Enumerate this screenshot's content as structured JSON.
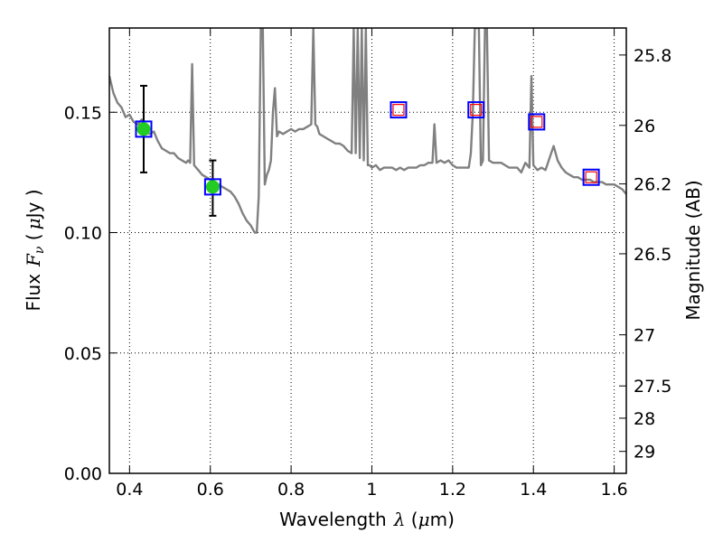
{
  "chart_data": {
    "type": "line",
    "xlabel": "Wavelength",
    "xlabel_math": "λ",
    "xlabel_unit_open": " (",
    "xlabel_unit_mu": "μ",
    "xlabel_unit_close": "m)",
    "ylabel_left": "Flux",
    "ylabel_left_math_F": "F",
    "ylabel_left_math_nu": "ν",
    "ylabel_left_unit_open": " (",
    "ylabel_left_unit_mu": "μ",
    "ylabel_left_unit_close": "Jy )",
    "ylabel_right": "Magnitude (AB)",
    "xlim": [
      0.35,
      1.63
    ],
    "ylim": [
      0.0,
      0.185
    ],
    "grid": true,
    "x_ticks": [
      {
        "value": 0.4,
        "label": "0.4"
      },
      {
        "value": 0.6,
        "label": "0.6"
      },
      {
        "value": 0.8,
        "label": "0.8"
      },
      {
        "value": 1.0,
        "label": "1"
      },
      {
        "value": 1.2,
        "label": "1.2"
      },
      {
        "value": 1.4,
        "label": "1.4"
      },
      {
        "value": 1.6,
        "label": "1.6"
      }
    ],
    "y_ticks": [
      {
        "value": 0.0,
        "label": "0.00"
      },
      {
        "value": 0.05,
        "label": "0.05"
      },
      {
        "value": 0.1,
        "label": "0.10"
      },
      {
        "value": 0.15,
        "label": "0.15"
      }
    ],
    "right_ticks": [
      {
        "value": 25.8,
        "label": "25.8"
      },
      {
        "value": 26.0,
        "label": "26"
      },
      {
        "value": 26.2,
        "label": "26.2"
      },
      {
        "value": 26.5,
        "label": "26.5"
      },
      {
        "value": 27.0,
        "label": "27"
      },
      {
        "value": 27.5,
        "label": "27.5"
      },
      {
        "value": 28.0,
        "label": "28"
      },
      {
        "value": 29.0,
        "label": "29"
      }
    ],
    "series": [
      {
        "type": "line",
        "color": "#808080",
        "x": [
          0.35,
          0.36,
          0.37,
          0.38,
          0.39,
          0.4,
          0.41,
          0.42,
          0.43,
          0.44,
          0.45,
          0.46,
          0.47,
          0.48,
          0.49,
          0.5,
          0.51,
          0.52,
          0.53,
          0.54,
          0.545,
          0.55,
          0.555,
          0.56,
          0.565,
          0.57,
          0.58,
          0.59,
          0.6,
          0.61,
          0.62,
          0.63,
          0.64,
          0.65,
          0.66,
          0.67,
          0.68,
          0.69,
          0.7,
          0.71,
          0.715,
          0.72,
          0.725,
          0.73,
          0.735,
          0.74,
          0.745,
          0.75,
          0.755,
          0.76,
          0.765,
          0.77,
          0.78,
          0.79,
          0.8,
          0.81,
          0.82,
          0.83,
          0.84,
          0.85,
          0.855,
          0.86,
          0.865,
          0.87,
          0.88,
          0.89,
          0.9,
          0.91,
          0.92,
          0.93,
          0.94,
          0.95,
          0.955,
          0.96,
          0.965,
          0.97,
          0.975,
          0.98,
          0.985,
          0.99,
          0.995,
          1.0,
          1.01,
          1.02,
          1.03,
          1.04,
          1.05,
          1.06,
          1.07,
          1.08,
          1.09,
          1.1,
          1.11,
          1.12,
          1.13,
          1.14,
          1.15,
          1.155,
          1.16,
          1.17,
          1.18,
          1.19,
          1.2,
          1.21,
          1.22,
          1.23,
          1.24,
          1.245,
          1.25,
          1.255,
          1.26,
          1.265,
          1.27,
          1.275,
          1.28,
          1.285,
          1.29,
          1.3,
          1.31,
          1.32,
          1.33,
          1.34,
          1.35,
          1.36,
          1.37,
          1.38,
          1.39,
          1.395,
          1.4,
          1.405,
          1.41,
          1.42,
          1.43,
          1.44,
          1.45,
          1.46,
          1.47,
          1.48,
          1.49,
          1.5,
          1.51,
          1.52,
          1.53,
          1.54,
          1.55,
          1.56,
          1.57,
          1.58,
          1.59,
          1.6,
          1.61,
          1.62,
          1.63
        ],
        "y": [
          0.165,
          0.158,
          0.154,
          0.152,
          0.148,
          0.149,
          0.146,
          0.145,
          0.147,
          0.142,
          0.141,
          0.142,
          0.138,
          0.135,
          0.134,
          0.133,
          0.133,
          0.131,
          0.13,
          0.129,
          0.13,
          0.129,
          0.17,
          0.128,
          0.127,
          0.126,
          0.124,
          0.123,
          0.122,
          0.121,
          0.12,
          0.119,
          0.118,
          0.117,
          0.115,
          0.112,
          0.108,
          0.105,
          0.103,
          0.1,
          0.1,
          0.115,
          0.185,
          0.185,
          0.12,
          0.124,
          0.126,
          0.13,
          0.15,
          0.16,
          0.14,
          0.142,
          0.141,
          0.142,
          0.143,
          0.142,
          0.143,
          0.143,
          0.144,
          0.145,
          0.185,
          0.145,
          0.144,
          0.141,
          0.14,
          0.139,
          0.138,
          0.137,
          0.137,
          0.136,
          0.134,
          0.133,
          0.185,
          0.133,
          0.185,
          0.131,
          0.185,
          0.13,
          0.185,
          0.128,
          0.128,
          0.127,
          0.128,
          0.126,
          0.127,
          0.127,
          0.127,
          0.126,
          0.127,
          0.126,
          0.127,
          0.127,
          0.127,
          0.128,
          0.128,
          0.129,
          0.129,
          0.145,
          0.129,
          0.13,
          0.129,
          0.13,
          0.128,
          0.127,
          0.127,
          0.127,
          0.127,
          0.133,
          0.15,
          0.185,
          0.185,
          0.185,
          0.128,
          0.13,
          0.185,
          0.185,
          0.13,
          0.129,
          0.129,
          0.129,
          0.128,
          0.127,
          0.127,
          0.127,
          0.125,
          0.129,
          0.127,
          0.165,
          0.128,
          0.127,
          0.126,
          0.127,
          0.126,
          0.131,
          0.136,
          0.13,
          0.127,
          0.125,
          0.124,
          0.123,
          0.123,
          0.122,
          0.122,
          0.122,
          0.121,
          0.121,
          0.121,
          0.12,
          0.12,
          0.12,
          0.119,
          0.118,
          0.116
        ]
      },
      {
        "type": "scatter",
        "name": "",
        "marker": "circle",
        "color": "#22cc22",
        "points": [
          {
            "x": 0.435,
            "y": 0.143,
            "yerr_low": 0.125,
            "yerr_high": 0.161
          },
          {
            "x": 0.606,
            "y": 0.119,
            "yerr_low": 0.107,
            "yerr_high": 0.13
          }
        ]
      },
      {
        "type": "scatter",
        "name": "",
        "marker": "square-open",
        "color": "#0000ff",
        "points": [
          {
            "x": 0.435,
            "y": 0.143
          },
          {
            "x": 0.606,
            "y": 0.119
          },
          {
            "x": 1.066,
            "y": 0.151
          },
          {
            "x": 1.258,
            "y": 0.151
          },
          {
            "x": 1.408,
            "y": 0.146
          },
          {
            "x": 1.543,
            "y": 0.123
          }
        ]
      },
      {
        "type": "scatter",
        "name": "",
        "marker": "square-open-small",
        "color": "#ff0000",
        "points": [
          {
            "x": 1.066,
            "y": 0.151
          },
          {
            "x": 1.258,
            "y": 0.151
          },
          {
            "x": 1.408,
            "y": 0.146
          },
          {
            "x": 1.543,
            "y": 0.123
          }
        ]
      }
    ]
  }
}
